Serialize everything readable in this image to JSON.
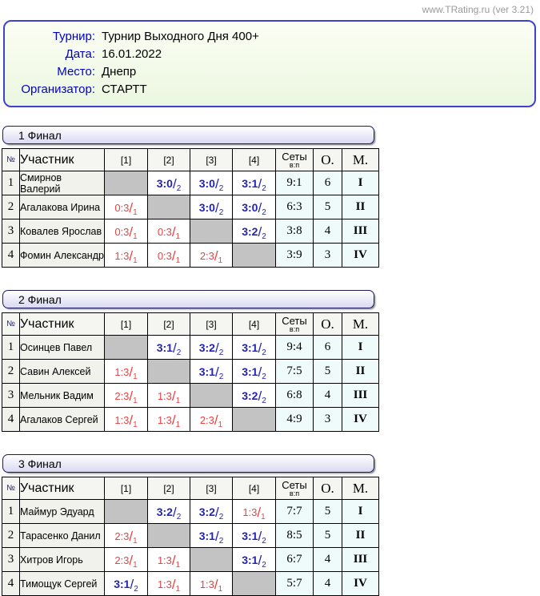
{
  "site_version": "www.TRating.ru (ver 3.21)",
  "colors": {
    "win-score": "#2323b4",
    "loss-score": "#e84343",
    "diagonal-cell": "#c3c3c3",
    "aqua-cell": "#effbfa",
    "name-cell": "#f2f2ec",
    "header-cell": "#f5f5f1",
    "info-border": "#3d43cf",
    "label-blue": "#0000cc",
    "link-gray": "#999999"
  },
  "info": {
    "rows": [
      {
        "label": "Турнир:",
        "value": "Турнир Выходного Дня 400+"
      },
      {
        "label": "Дата:",
        "value": "16.01.2022"
      },
      {
        "label": "Место:",
        "value": "Днепр"
      },
      {
        "label": "Организатор:",
        "value": "СТАРТТ"
      }
    ]
  },
  "table_headers": {
    "num": "№",
    "participant": "Участник",
    "opponents": [
      "[1]",
      "[2]",
      "[3]",
      "[4]"
    ],
    "sets": "Сеты",
    "sets_sub": "в:п",
    "points": "О.",
    "place": "М."
  },
  "score_slash": "/",
  "groups": [
    {
      "title": "1 Финал",
      "rows": [
        {
          "num": "1",
          "name": "Смирнов Валерий",
          "results": [
            null,
            {
              "score": "3:0",
              "pts": "2",
              "win": true
            },
            {
              "score": "3:0",
              "pts": "2",
              "win": true
            },
            {
              "score": "3:1",
              "pts": "2",
              "win": true
            }
          ],
          "sets": "9:1",
          "points": "6",
          "place": "I"
        },
        {
          "num": "2",
          "name": "Агалакова Ирина",
          "results": [
            {
              "score": "0:3",
              "pts": "1",
              "win": false
            },
            null,
            {
              "score": "3:0",
              "pts": "2",
              "win": true
            },
            {
              "score": "3:0",
              "pts": "2",
              "win": true
            }
          ],
          "sets": "6:3",
          "points": "5",
          "place": "II"
        },
        {
          "num": "3",
          "name": "Ковалев Ярослав",
          "results": [
            {
              "score": "0:3",
              "pts": "1",
              "win": false
            },
            {
              "score": "0:3",
              "pts": "1",
              "win": false
            },
            null,
            {
              "score": "3:2",
              "pts": "2",
              "win": true
            }
          ],
          "sets": "3:8",
          "points": "4",
          "place": "III"
        },
        {
          "num": "4",
          "name": "Фомин Александр",
          "results": [
            {
              "score": "1:3",
              "pts": "1",
              "win": false
            },
            {
              "score": "0:3",
              "pts": "1",
              "win": false
            },
            {
              "score": "2:3",
              "pts": "1",
              "win": false
            },
            null
          ],
          "sets": "3:9",
          "points": "3",
          "place": "IV"
        }
      ]
    },
    {
      "title": "2 Финал",
      "rows": [
        {
          "num": "1",
          "name": "Осинцев Павел",
          "results": [
            null,
            {
              "score": "3:1",
              "pts": "2",
              "win": true
            },
            {
              "score": "3:2",
              "pts": "2",
              "win": true
            },
            {
              "score": "3:1",
              "pts": "2",
              "win": true
            }
          ],
          "sets": "9:4",
          "points": "6",
          "place": "I"
        },
        {
          "num": "2",
          "name": "Савин Алексей",
          "results": [
            {
              "score": "1:3",
              "pts": "1",
              "win": false
            },
            null,
            {
              "score": "3:1",
              "pts": "2",
              "win": true
            },
            {
              "score": "3:1",
              "pts": "2",
              "win": true
            }
          ],
          "sets": "7:5",
          "points": "5",
          "place": "II"
        },
        {
          "num": "3",
          "name": "Мельник Вадим",
          "results": [
            {
              "score": "2:3",
              "pts": "1",
              "win": false
            },
            {
              "score": "1:3",
              "pts": "1",
              "win": false
            },
            null,
            {
              "score": "3:2",
              "pts": "2",
              "win": true
            }
          ],
          "sets": "6:8",
          "points": "4",
          "place": "III"
        },
        {
          "num": "4",
          "name": "Агалаков Сергей",
          "results": [
            {
              "score": "1:3",
              "pts": "1",
              "win": false
            },
            {
              "score": "1:3",
              "pts": "1",
              "win": false
            },
            {
              "score": "2:3",
              "pts": "1",
              "win": false
            },
            null
          ],
          "sets": "4:9",
          "points": "3",
          "place": "IV"
        }
      ]
    },
    {
      "title": "3 Финал",
      "rows": [
        {
          "num": "1",
          "name": "Маймур Эдуард",
          "results": [
            null,
            {
              "score": "3:2",
              "pts": "2",
              "win": true
            },
            {
              "score": "3:2",
              "pts": "2",
              "win": true
            },
            {
              "score": "1:3",
              "pts": "1",
              "win": false
            }
          ],
          "sets": "7:7",
          "points": "5",
          "place": "I"
        },
        {
          "num": "2",
          "name": "Тарасенко Данил",
          "results": [
            {
              "score": "2:3",
              "pts": "1",
              "win": false
            },
            null,
            {
              "score": "3:1",
              "pts": "2",
              "win": true
            },
            {
              "score": "3:1",
              "pts": "2",
              "win": true
            }
          ],
          "sets": "8:5",
          "points": "5",
          "place": "II"
        },
        {
          "num": "3",
          "name": "Хитров Игорь",
          "results": [
            {
              "score": "2:3",
              "pts": "1",
              "win": false
            },
            {
              "score": "1:3",
              "pts": "1",
              "win": false
            },
            null,
            {
              "score": "3:1",
              "pts": "2",
              "win": true
            }
          ],
          "sets": "6:7",
          "points": "4",
          "place": "III"
        },
        {
          "num": "4",
          "name": "Тимощук Сергей",
          "results": [
            {
              "score": "3:1",
              "pts": "2",
              "win": true
            },
            {
              "score": "1:3",
              "pts": "1",
              "win": false
            },
            {
              "score": "1:3",
              "pts": "1",
              "win": false
            },
            null
          ],
          "sets": "5:7",
          "points": "4",
          "place": "IV"
        }
      ]
    }
  ]
}
